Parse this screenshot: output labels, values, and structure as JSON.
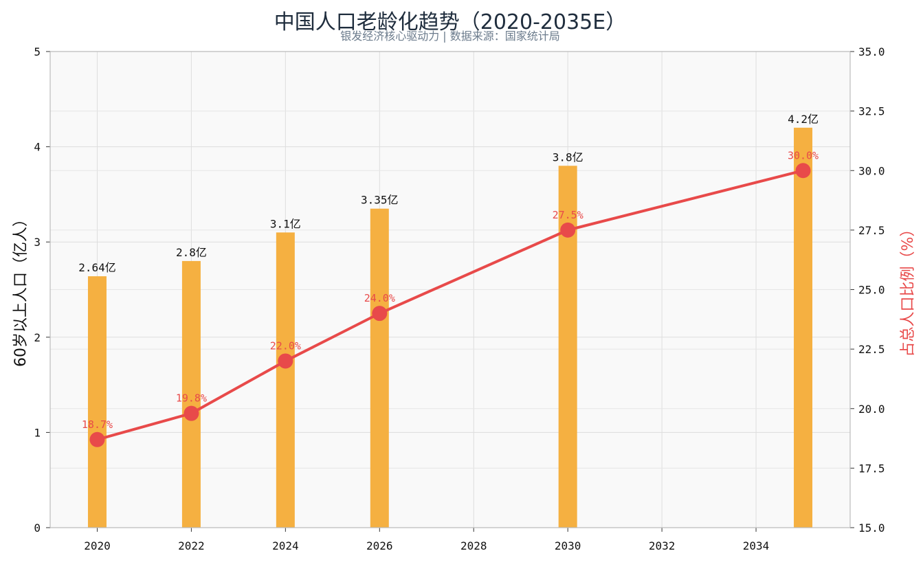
{
  "chart_data": {
    "type": "bar+line",
    "title": "中国人口老龄化趋势（2020-2035E）",
    "subtitle": "银发经济核心驱动力 | 数据来源：国家统计局",
    "ylabel_left": "60岁以上人口（亿人）",
    "ylabel_right": "占总人口比例（%）",
    "x": [
      2020,
      2022,
      2024,
      2026,
      2030,
      2035
    ],
    "x_ticks": [
      "2020",
      "2022",
      "2024",
      "2026",
      "2028",
      "2030",
      "2032",
      "2034"
    ],
    "xlim": [
      2019,
      2036
    ],
    "ylim_left": [
      0,
      5
    ],
    "yticks_left": [
      "0",
      "1",
      "2",
      "3",
      "4",
      "5"
    ],
    "ylim_right": [
      15,
      35
    ],
    "yticks_right": [
      "15.0",
      "17.5",
      "20.0",
      "22.5",
      "25.0",
      "27.5",
      "30.0",
      "32.5",
      "35.0"
    ],
    "grid": true,
    "series": [
      {
        "type": "bar",
        "axis": "left",
        "values": [
          2.64,
          2.8,
          3.1,
          3.35,
          3.8,
          4.2
        ],
        "labels": [
          "2.64亿",
          "2.8亿",
          "3.1亿",
          "3.35亿",
          "3.8亿",
          "4.2亿"
        ]
      },
      {
        "type": "line",
        "axis": "right",
        "values": [
          18.7,
          19.8,
          22.0,
          24.0,
          27.5,
          30.0
        ],
        "labels": [
          "18.7%",
          "19.8%",
          "22.0%",
          "24.0%",
          "27.5%",
          "30.0%"
        ]
      }
    ],
    "colors": {
      "bar": "#f5b041",
      "line": "#e84a4a",
      "plot_bg": "#f9f9f9",
      "grid": "#dddddd",
      "axis": "#bbbbbb",
      "right_label": "#e84a4a"
    }
  }
}
